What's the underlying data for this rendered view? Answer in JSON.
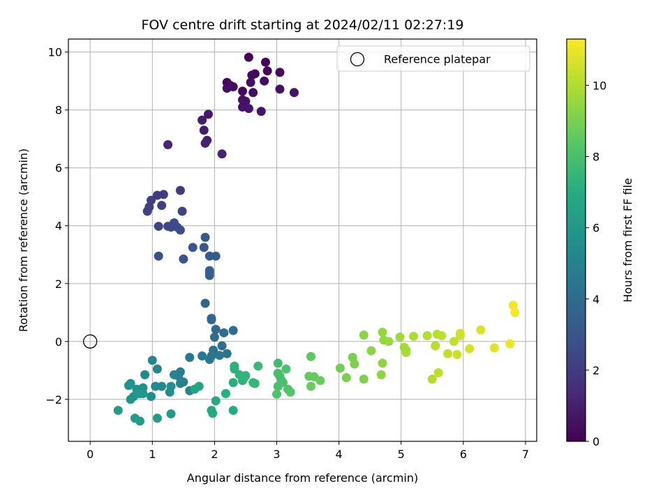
{
  "chart_data": {
    "type": "scatter",
    "title": "FOV centre drift starting at 2024/02/11 02:27:19",
    "xlabel": "Angular distance from reference (arcmin)",
    "ylabel": "Rotation from reference (arcmin)",
    "xlim": [
      -0.35,
      7.18
    ],
    "ylim": [
      -3.45,
      10.45
    ],
    "xticks": [
      0,
      1,
      2,
      3,
      4,
      5,
      6,
      7
    ],
    "yticks": [
      -2,
      0,
      2,
      4,
      6,
      8,
      10
    ],
    "grid": true,
    "legend": {
      "placement": "upper right",
      "entries": [
        {
          "label": "Reference platepar",
          "marker": "open-circle"
        }
      ]
    },
    "reference_point": {
      "x": 0,
      "y": 0
    },
    "colorbar": {
      "label": "Hours from first FF file",
      "colormap": "viridis",
      "range": [
        0,
        11.3
      ],
      "ticks": [
        0,
        2,
        4,
        6,
        8,
        10
      ]
    },
    "points": [
      [
        2.55,
        9.82,
        0.1
      ],
      [
        2.82,
        9.65,
        0.1
      ],
      [
        2.65,
        9.25,
        0.2
      ],
      [
        2.85,
        9.35,
        0.2
      ],
      [
        3.05,
        9.3,
        0.3
      ],
      [
        2.6,
        9.2,
        0.3
      ],
      [
        2.2,
        8.95,
        0.2
      ],
      [
        2.25,
        8.85,
        0.3
      ],
      [
        2.3,
        8.8,
        0.4
      ],
      [
        2.2,
        8.75,
        0.4
      ],
      [
        2.58,
        8.95,
        0.5
      ],
      [
        2.45,
        8.65,
        0.3
      ],
      [
        2.62,
        8.6,
        0.4
      ],
      [
        3.05,
        8.72,
        0.5
      ],
      [
        3.28,
        8.6,
        0.6
      ],
      [
        2.45,
        8.35,
        0.5
      ],
      [
        2.5,
        8.3,
        0.6
      ],
      [
        2.45,
        8.1,
        0.6
      ],
      [
        2.55,
        8.05,
        0.7
      ],
      [
        2.75,
        7.95,
        0.7
      ],
      [
        2.8,
        9.0,
        0.4
      ],
      [
        1.9,
        7.85,
        0.8
      ],
      [
        1.8,
        7.65,
        0.9
      ],
      [
        1.83,
        7.3,
        0.9
      ],
      [
        1.88,
        6.95,
        1.0
      ],
      [
        1.85,
        6.85,
        1.1
      ],
      [
        1.25,
        6.8,
        1.2
      ],
      [
        2.12,
        6.48,
        1.1
      ],
      [
        1.45,
        5.22,
        2.0
      ],
      [
        1.18,
        5.08,
        2.0
      ],
      [
        1.08,
        5.05,
        2.0
      ],
      [
        0.98,
        4.88,
        2.1
      ],
      [
        0.95,
        4.65,
        2.1
      ],
      [
        0.92,
        4.5,
        2.2
      ],
      [
        1.15,
        4.7,
        2.2
      ],
      [
        1.48,
        4.5,
        2.3
      ],
      [
        1.1,
        3.98,
        2.4
      ],
      [
        1.25,
        3.98,
        2.5
      ],
      [
        1.3,
        3.95,
        2.5
      ],
      [
        1.35,
        4.1,
        2.6
      ],
      [
        1.4,
        3.95,
        2.6
      ],
      [
        1.45,
        3.85,
        2.7
      ],
      [
        1.1,
        2.95,
        2.8
      ],
      [
        1.5,
        2.85,
        2.9
      ],
      [
        1.65,
        3.25,
        3.0
      ],
      [
        1.83,
        3.25,
        3.1
      ],
      [
        1.85,
        3.6,
        3.2
      ],
      [
        1.92,
        2.95,
        3.3
      ],
      [
        2.02,
        2.95,
        3.3
      ],
      [
        1.92,
        2.45,
        3.4
      ],
      [
        1.92,
        2.38,
        3.4
      ],
      [
        1.92,
        2.28,
        3.5
      ],
      [
        1.85,
        1.32,
        3.7
      ],
      [
        1.95,
        0.8,
        3.8
      ],
      [
        1.95,
        0.75,
        3.8
      ],
      [
        2.02,
        0.42,
        3.9
      ],
      [
        2.15,
        0.3,
        4.0
      ],
      [
        2.3,
        0.38,
        4.0
      ],
      [
        2.0,
        0.15,
        4.1
      ],
      [
        2.12,
        -0.15,
        4.2
      ],
      [
        1.98,
        -0.3,
        4.3
      ],
      [
        2.2,
        -0.42,
        4.3
      ],
      [
        2.08,
        -0.48,
        4.4
      ],
      [
        1.95,
        -0.5,
        4.4
      ],
      [
        1.92,
        -0.62,
        4.5
      ],
      [
        1.6,
        -0.55,
        4.6
      ],
      [
        1.8,
        -0.5,
        4.7
      ],
      [
        1.45,
        -1.05,
        4.8
      ],
      [
        1.5,
        -1.4,
        4.8
      ],
      [
        1.42,
        -1.2,
        4.9
      ],
      [
        1.35,
        -1.15,
        5.0
      ],
      [
        1.45,
        -1.45,
        5.0
      ],
      [
        1.6,
        -1.7,
        5.1
      ],
      [
        1.0,
        -0.65,
        5.2
      ],
      [
        1.08,
        -0.95,
        5.2
      ],
      [
        0.88,
        -1.15,
        5.3
      ],
      [
        1.05,
        -1.55,
        5.4
      ],
      [
        1.15,
        -1.55,
        5.4
      ],
      [
        1.3,
        -1.55,
        5.5
      ],
      [
        1.28,
        -1.75,
        5.5
      ],
      [
        0.98,
        -1.9,
        5.6
      ],
      [
        0.85,
        -1.6,
        5.6
      ],
      [
        0.75,
        -1.65,
        5.7
      ],
      [
        0.8,
        -1.8,
        5.7
      ],
      [
        0.65,
        -1.45,
        5.8
      ],
      [
        0.62,
        -1.52,
        5.8
      ],
      [
        0.7,
        -1.9,
        5.9
      ],
      [
        0.65,
        -2.0,
        5.9
      ],
      [
        0.75,
        -1.8,
        6.0
      ],
      [
        0.85,
        -1.8,
        6.0
      ],
      [
        1.3,
        -2.5,
        6.1
      ],
      [
        0.45,
        -2.38,
        6.2
      ],
      [
        1.08,
        -2.65,
        6.2
      ],
      [
        0.72,
        -2.65,
        6.3
      ],
      [
        0.8,
        -2.75,
        6.3
      ],
      [
        1.75,
        -1.55,
        6.5
      ],
      [
        1.68,
        -1.65,
        6.6
      ],
      [
        1.95,
        -2.38,
        6.8
      ],
      [
        1.97,
        -2.48,
        6.8
      ],
      [
        2.02,
        -2.05,
        6.9
      ],
      [
        2.3,
        -2.38,
        7.0
      ],
      [
        2.3,
        -1.42,
        7.1
      ],
      [
        2.18,
        -1.8,
        7.1
      ],
      [
        2.32,
        -0.85,
        7.2
      ],
      [
        2.32,
        -0.95,
        7.2
      ],
      [
        2.4,
        -1.15,
        7.3
      ],
      [
        2.45,
        -1.35,
        7.3
      ],
      [
        2.5,
        -1.18,
        7.4
      ],
      [
        2.48,
        -1.25,
        7.4
      ],
      [
        2.62,
        -1.42,
        7.5
      ],
      [
        2.65,
        -1.45,
        7.5
      ],
      [
        2.7,
        -0.85,
        7.6
      ],
      [
        3.02,
        -0.75,
        7.8
      ],
      [
        3.02,
        -1.1,
        7.8
      ],
      [
        3.05,
        -1.2,
        7.9
      ],
      [
        3.08,
        -1.35,
        7.9
      ],
      [
        3.02,
        -1.55,
        8.0
      ],
      [
        3.1,
        -1.42,
        8.0
      ],
      [
        3.0,
        -1.82,
        8.1
      ],
      [
        3.15,
        -0.95,
        8.1
      ],
      [
        3.18,
        -1.65,
        8.2
      ],
      [
        3.22,
        -1.75,
        8.2
      ],
      [
        3.55,
        -0.52,
        8.5
      ],
      [
        3.52,
        -1.2,
        8.6
      ],
      [
        3.6,
        -1.22,
        8.6
      ],
      [
        3.55,
        -1.55,
        8.7
      ],
      [
        3.7,
        -1.35,
        8.7
      ],
      [
        4.02,
        -0.92,
        8.9
      ],
      [
        4.12,
        -1.25,
        9.0
      ],
      [
        4.22,
        -0.55,
        9.0
      ],
      [
        4.25,
        -0.78,
        9.1
      ],
      [
        4.4,
        -1.3,
        9.1
      ],
      [
        4.4,
        0.22,
        9.3
      ],
      [
        4.52,
        -0.32,
        9.3
      ],
      [
        4.68,
        -1.15,
        9.4
      ],
      [
        4.7,
        -0.75,
        9.4
      ],
      [
        4.7,
        0.32,
        9.5
      ],
      [
        4.72,
        0.05,
        9.5
      ],
      [
        4.8,
        0.0,
        9.6
      ],
      [
        4.98,
        0.15,
        9.7
      ],
      [
        5.05,
        -0.2,
        9.7
      ],
      [
        5.08,
        -0.3,
        9.8
      ],
      [
        5.08,
        -0.38,
        9.8
      ],
      [
        5.2,
        0.18,
        9.9
      ],
      [
        5.42,
        0.2,
        10.0
      ],
      [
        5.5,
        -1.3,
        10.0
      ],
      [
        5.55,
        -0.15,
        10.1
      ],
      [
        5.58,
        0.25,
        10.1
      ],
      [
        5.6,
        -1.08,
        10.2
      ],
      [
        5.65,
        0.2,
        10.2
      ],
      [
        5.75,
        -0.42,
        10.3
      ],
      [
        5.85,
        0.0,
        10.3
      ],
      [
        5.9,
        -0.45,
        10.4
      ],
      [
        5.95,
        0.2,
        10.4
      ],
      [
        5.95,
        0.28,
        10.5
      ],
      [
        6.1,
        -0.25,
        10.6
      ],
      [
        6.28,
        0.4,
        10.7
      ],
      [
        6.5,
        -0.22,
        10.8
      ],
      [
        6.75,
        -0.08,
        11.0
      ],
      [
        6.8,
        1.25,
        11.1
      ],
      [
        6.83,
        1.0,
        11.2
      ]
    ]
  }
}
